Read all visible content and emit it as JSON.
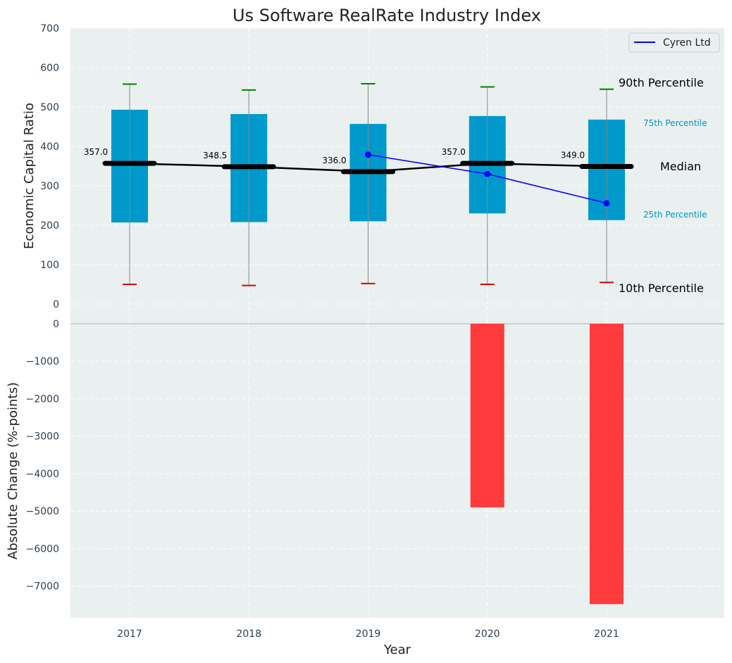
{
  "title": "Us Software RealRate Industry Index",
  "colors": {
    "panel_bg": "#eaeff0",
    "box": "#0099cc",
    "median": "#000000",
    "company": "#0000ff",
    "p90_cap": "#008000",
    "p10_cap": "#dd0000",
    "neg_bar": "#ff3b3b",
    "tick_text": "#2c3e50",
    "p_label_blue": "#0099bb"
  },
  "chart_data": [
    {
      "type": "box",
      "ylabel": "Economic Capital Ratio",
      "ylim": [
        0,
        700
      ],
      "yticks": [
        0,
        100,
        200,
        300,
        400,
        500,
        600,
        700
      ],
      "grid": true,
      "categories": [
        "2017",
        "2018",
        "2019",
        "2020",
        "2021"
      ],
      "percentiles": {
        "p10": [
          50,
          47,
          52,
          50,
          55
        ],
        "p25": [
          207,
          208,
          210,
          230,
          213
        ],
        "median": [
          357.0,
          348.5,
          336.0,
          357.0,
          349.0
        ],
        "p75": [
          493,
          482,
          457,
          477,
          468
        ],
        "p90": [
          558,
          543,
          559,
          551,
          545
        ]
      },
      "median_labels": [
        "357.0",
        "348.5",
        "336.0",
        "357.0",
        "349.0"
      ],
      "series": [
        {
          "name": "Cyren Ltd",
          "values": [
            null,
            null,
            379,
            330,
            256
          ]
        }
      ],
      "legend": "top-right",
      "annotations": {
        "p90": "90th Percentile",
        "p75": "75th Percentile",
        "median": "Median",
        "p25": "25th Percentile",
        "p10": "10th Percentile"
      }
    },
    {
      "type": "bar",
      "xlabel": "Year",
      "ylabel": "Absolute Change (%-points)",
      "ylim": [
        -7850,
        0
      ],
      "yticks": [
        0,
        -1000,
        -2000,
        -3000,
        -4000,
        -5000,
        -6000,
        -7000
      ],
      "ytick_labels": [
        "0",
        "−1000",
        "−2000",
        "−3000",
        "−4000",
        "−5000",
        "−6000",
        "−7000"
      ],
      "grid": true,
      "categories": [
        "2017",
        "2018",
        "2019",
        "2020",
        "2021"
      ],
      "values": [
        null,
        null,
        null,
        -4900,
        -7480
      ]
    }
  ]
}
